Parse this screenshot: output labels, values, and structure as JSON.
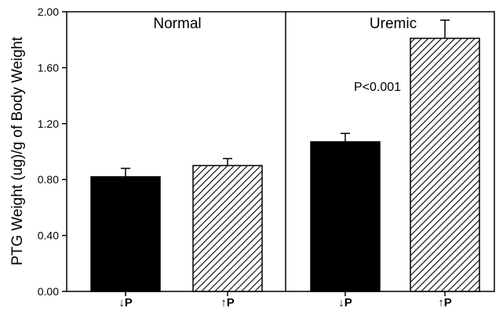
{
  "chart_data": {
    "type": "bar",
    "ylabel": "PTG Weight (ug)/g of Body Weight",
    "ylim": [
      0,
      2.0
    ],
    "yticks": [
      "0.00",
      "0.40",
      "0.80",
      "1.20",
      "1.60",
      "2.00"
    ],
    "grid": false,
    "legend": "none",
    "panels": [
      {
        "title": "Normal",
        "bars": [
          {
            "label": "↓P",
            "value": 0.82,
            "error": 0.06,
            "fill": "solid"
          },
          {
            "label": "↑P",
            "value": 0.9,
            "error": 0.05,
            "fill": "hatched"
          }
        ]
      },
      {
        "title": "Uremic",
        "bars": [
          {
            "label": "↓P",
            "value": 1.07,
            "error": 0.06,
            "fill": "solid"
          },
          {
            "label": "↑P",
            "value": 1.81,
            "error": 0.13,
            "fill": "hatched"
          }
        ]
      }
    ],
    "annotations": [
      {
        "text": "P<0.001",
        "panel": 1
      }
    ]
  }
}
